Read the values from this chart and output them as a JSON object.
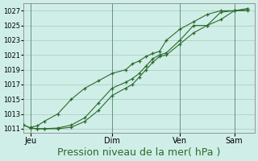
{
  "bg_color": "#d0eee8",
  "grid_color": "#a0ccbb",
  "line_color": "#2d6a2d",
  "xlabel": "Pression niveau de la mer( hPa )",
  "xlabel_fontsize": 9,
  "ylim": [
    1010.5,
    1028
  ],
  "yticks": [
    1011,
    1013,
    1015,
    1017,
    1019,
    1021,
    1023,
    1025,
    1027
  ],
  "xtick_labels": [
    "Jeu",
    "Dim",
    "Ven",
    "Sam"
  ],
  "xtick_positions": [
    1,
    13,
    23,
    31
  ],
  "xlim": [
    0,
    34
  ],
  "line1_x": [
    0,
    1,
    2,
    3,
    5,
    7,
    9,
    11,
    13,
    15,
    16,
    17,
    18,
    19,
    20,
    21,
    23,
    25,
    27,
    29,
    31,
    33
  ],
  "line1_y": [
    1011.5,
    1011.1,
    1011.0,
    1011.0,
    1011.1,
    1011.5,
    1012.5,
    1014.5,
    1016.5,
    1017.3,
    1017.8,
    1018.5,
    1019.5,
    1020.5,
    1021.0,
    1021.3,
    1023.0,
    1025.0,
    1025.0,
    1026.8,
    1027.0,
    1027.2
  ],
  "line2_x": [
    0,
    1,
    2,
    3,
    5,
    7,
    9,
    11,
    13,
    15,
    16,
    17,
    18,
    19,
    20,
    21,
    23,
    25,
    27,
    29,
    31,
    33
  ],
  "line2_y": [
    1011.5,
    1011.1,
    1011.0,
    1011.0,
    1011.0,
    1011.2,
    1012.0,
    1013.5,
    1015.5,
    1016.5,
    1017.0,
    1018.0,
    1019.0,
    1020.0,
    1020.8,
    1021.0,
    1022.5,
    1024.0,
    1025.0,
    1025.8,
    1027.0,
    1027.0
  ],
  "line3_x": [
    1,
    2,
    3,
    5,
    7,
    9,
    11,
    13,
    15,
    16,
    17,
    18,
    19,
    20,
    21,
    23,
    25,
    27,
    29,
    31,
    33
  ],
  "line3_y": [
    1011.2,
    1011.4,
    1012.0,
    1013.0,
    1015.0,
    1016.5,
    1017.5,
    1018.5,
    1019.0,
    1019.8,
    1020.2,
    1020.8,
    1021.2,
    1021.5,
    1023.0,
    1024.5,
    1025.5,
    1026.5,
    1027.0,
    1027.0,
    1027.3
  ],
  "vline_x": [
    1,
    13,
    23,
    31
  ]
}
